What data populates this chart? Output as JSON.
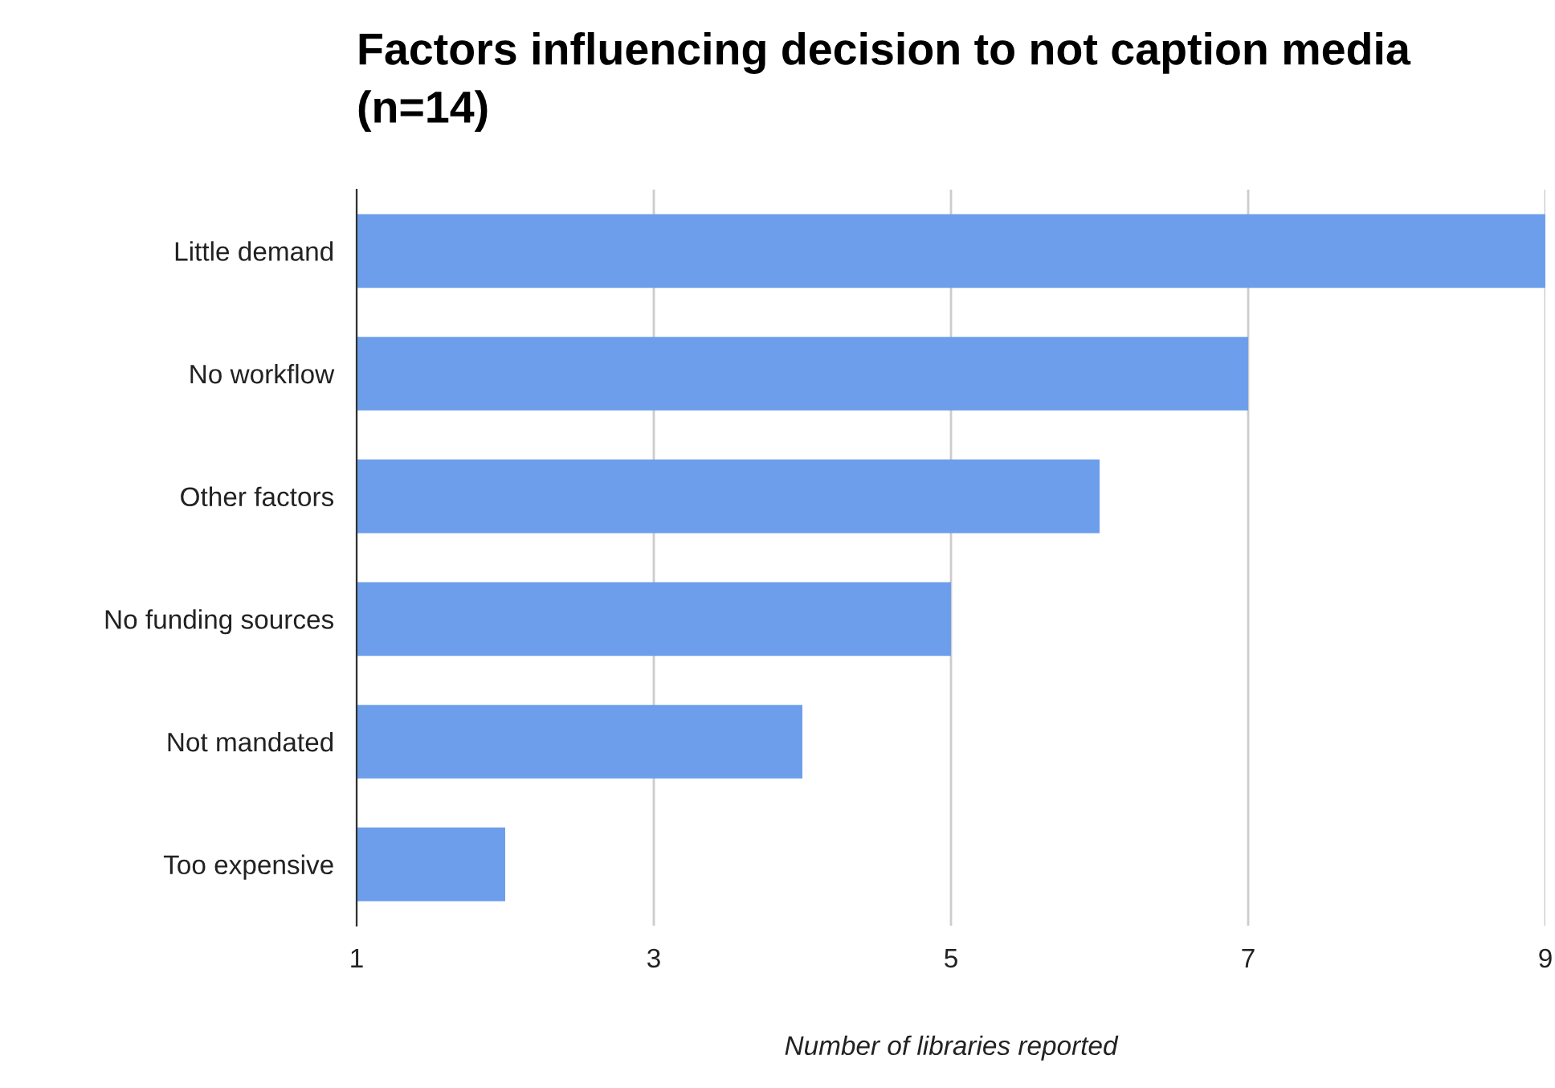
{
  "chart_data": {
    "type": "bar",
    "orientation": "horizontal",
    "title": "Factors influencing decision to not caption media (n=14)",
    "xlabel": "Number of libraries reported",
    "categories": [
      "Little demand",
      "No workflow",
      "Other factors",
      "No funding sources",
      "Not mandated",
      "Too expensive"
    ],
    "values": [
      9,
      7,
      6,
      5,
      4,
      2
    ],
    "color": "#6d9eeb",
    "xlim": [
      1,
      9
    ],
    "xticks": [
      1,
      3,
      5,
      7,
      9
    ],
    "grid": "x",
    "legend": false
  }
}
